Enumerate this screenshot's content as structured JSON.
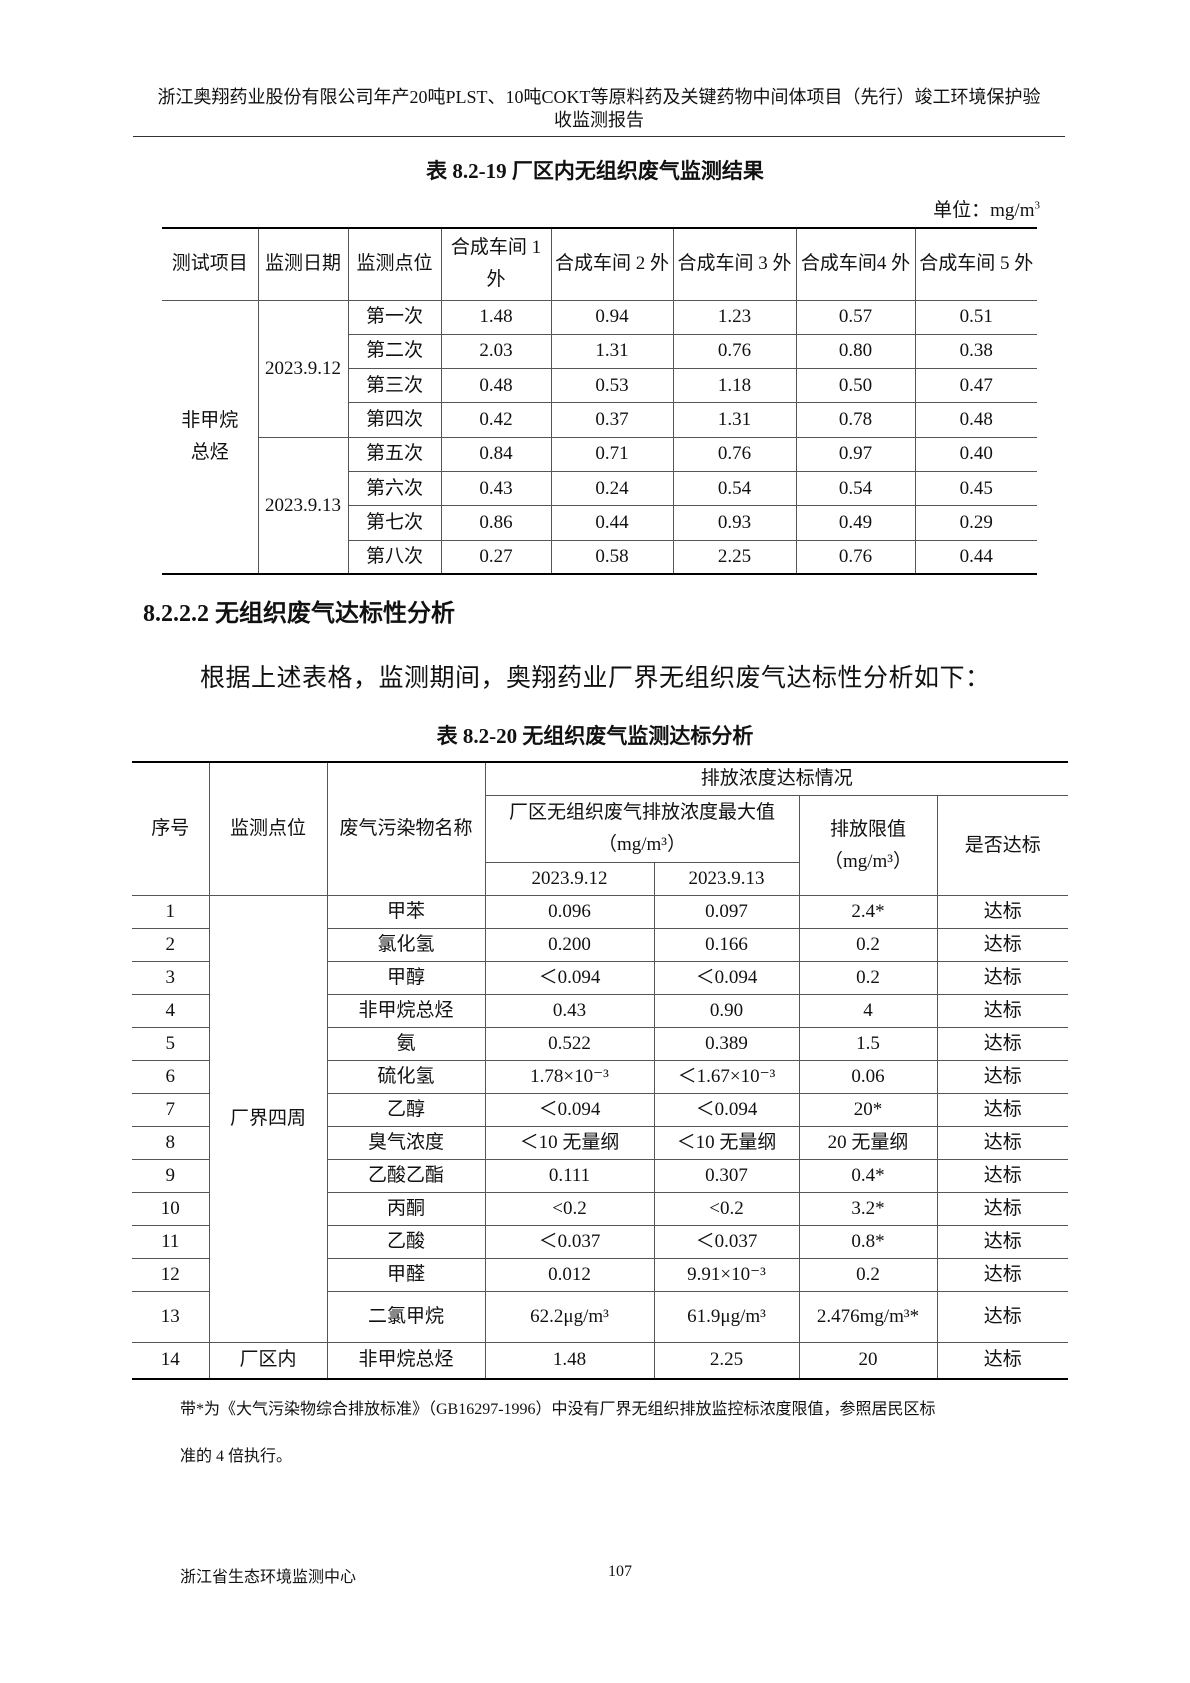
{
  "header": {
    "line1": "浙江奥翔药业股份有限公司年产20吨PLST、10吨COKT等原料药及关键药物中间体项目（先行）竣工环境保护验",
    "line2": "收监测报告"
  },
  "table1": {
    "title": "表 8.2-19  厂区内无组织废气监测结果",
    "unit": "单位：mg/m",
    "unit_sup": "3",
    "headers": [
      "测试项目",
      "监测日期",
      "监测点位",
      "合成车间 1 外",
      "合成车间 2 外",
      "合成车间 3 外",
      "合成车间4 外",
      "合成车间 5 外"
    ],
    "item": "非甲烷总烃",
    "dates": [
      "2023.9.12",
      "2023.9.13"
    ],
    "rows": [
      [
        "第一次",
        "1.48",
        "0.94",
        "1.23",
        "0.57",
        "0.51"
      ],
      [
        "第二次",
        "2.03",
        "1.31",
        "0.76",
        "0.80",
        "0.38"
      ],
      [
        "第三次",
        "0.48",
        "0.53",
        "1.18",
        "0.50",
        "0.47"
      ],
      [
        "第四次",
        "0.42",
        "0.37",
        "1.31",
        "0.78",
        "0.48"
      ],
      [
        "第五次",
        "0.84",
        "0.71",
        "0.76",
        "0.97",
        "0.40"
      ],
      [
        "第六次",
        "0.43",
        "0.24",
        "0.54",
        "0.54",
        "0.45"
      ],
      [
        "第七次",
        "0.86",
        "0.44",
        "0.93",
        "0.49",
        "0.29"
      ],
      [
        "第八次",
        "0.27",
        "0.58",
        "2.25",
        "0.76",
        "0.44"
      ]
    ]
  },
  "section_heading": "8.2.2.2  无组织废气达标性分析",
  "paragraph": "根据上述表格，监测期间，奥翔药业厂界无组织废气达标性分析如下：",
  "table2": {
    "title": "表 8.2-20  无组织废气监测达标分析",
    "h_seq": "序号",
    "h_point": "监测点位",
    "h_name": "废气污染物名称",
    "h_group": "排放浓度达标情况",
    "h_max": "厂区无组织废气排放浓度最大值（mg/m³）",
    "h_limit": "排放限值（mg/m³）",
    "h_ok": "是否达标",
    "h_d1": "2023.9.12",
    "h_d2": "2023.9.13",
    "point_a": "厂界四周",
    "point_b": "厂区内",
    "rows": [
      {
        "n": "1",
        "name": "甲苯",
        "d1": "0.096",
        "d2": "0.097",
        "limit": "2.4*",
        "ok": "达标"
      },
      {
        "n": "2",
        "name": "氯化氢",
        "d1": "0.200",
        "d2": "0.166",
        "limit": "0.2",
        "ok": "达标"
      },
      {
        "n": "3",
        "name": "甲醇",
        "d1": "＜0.094",
        "d2": "＜0.094",
        "limit": "0.2",
        "ok": "达标"
      },
      {
        "n": "4",
        "name": "非甲烷总烃",
        "d1": "0.43",
        "d2": "0.90",
        "limit": "4",
        "ok": "达标"
      },
      {
        "n": "5",
        "name": "氨",
        "d1": "0.522",
        "d2": "0.389",
        "limit": "1.5",
        "ok": "达标"
      },
      {
        "n": "6",
        "name": "硫化氢",
        "d1": "1.78×10⁻³",
        "d2": "＜1.67×10⁻³",
        "limit": "0.06",
        "ok": "达标"
      },
      {
        "n": "7",
        "name": "乙醇",
        "d1": "＜0.094",
        "d2": "＜0.094",
        "limit": "20*",
        "ok": "达标"
      },
      {
        "n": "8",
        "name": "臭气浓度",
        "d1": "＜10 无量纲",
        "d2": "＜10 无量纲",
        "limit": "20 无量纲",
        "ok": "达标"
      },
      {
        "n": "9",
        "name": "乙酸乙酯",
        "d1": "0.111",
        "d2": "0.307",
        "limit": "0.4*",
        "ok": "达标"
      },
      {
        "n": "10",
        "name": "丙酮",
        "d1": "<0.2",
        "d2": "<0.2",
        "limit": "3.2*",
        "ok": "达标"
      },
      {
        "n": "11",
        "name": "乙酸",
        "d1": "＜0.037",
        "d2": "＜0.037",
        "limit": "0.8*",
        "ok": "达标"
      },
      {
        "n": "12",
        "name": "甲醛",
        "d1": "0.012",
        "d2": "9.91×10⁻³",
        "limit": "0.2",
        "ok": "达标"
      },
      {
        "n": "13",
        "name": "二氯甲烷",
        "d1": "62.2μg/m³",
        "d2": "61.9μg/m³",
        "limit": "2.476mg/m³*",
        "ok": "达标"
      },
      {
        "n": "14",
        "name": "非甲烷总烃",
        "d1": "1.48",
        "d2": "2.25",
        "limit": "20",
        "ok": "达标"
      }
    ]
  },
  "note_line1": "带*为《大气污染物综合排放标准》（GB16297-1996）中没有厂界无组织排放监控标浓度限值，参照居民区标",
  "note_line2": "准的 4 倍执行。",
  "footer": {
    "org": "浙江省生态环境监测中心",
    "page": "107"
  }
}
